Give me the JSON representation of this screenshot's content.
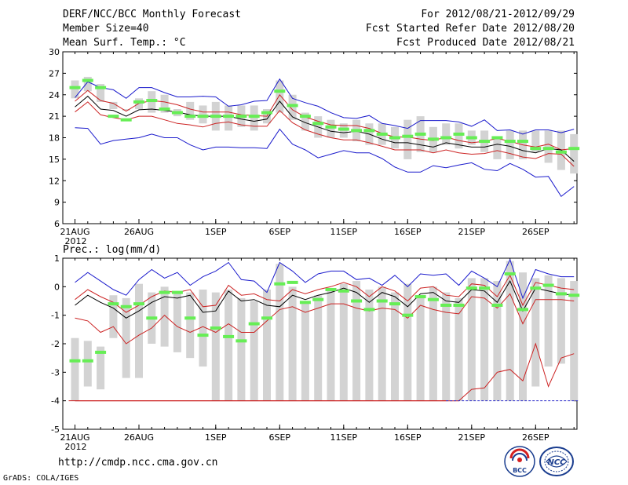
{
  "header": {
    "title_left": "DERF/NCC/BCC Monthly Forecast",
    "member_size": "Member Size=40",
    "variable": "Mean Surf. Temp.: °C",
    "forecast_period": "For 2012/08/21-2012/09/29",
    "start_date": "Fcst Started Refer Date 2012/08/20",
    "produced_date": "Fcst Produced Date 2012/08/21"
  },
  "footer": {
    "url": "http://cmdp.ncc.cma.gov.cn",
    "credit": "GrADS: COLA/IGES",
    "logo_left_text": "BCC",
    "logo_right_text": "NCC"
  },
  "colors": {
    "box": "#d3d3d3",
    "median": "#66ee55",
    "mean": "#000000",
    "inner": "#cc2222",
    "outer": "#1a1acc",
    "baseline": "#3333cc"
  },
  "chart_data": [
    {
      "type": "box",
      "title": "Mean Surf. Temp.: °C",
      "x_start": "2012-08-21",
      "n_days": 40,
      "xtick_labels": [
        "21AUG",
        "26AUG",
        "1SEP",
        "6SEP",
        "11SEP",
        "16SEP",
        "21SEP",
        "26SEP"
      ],
      "xtick_days": [
        0,
        5,
        11,
        16,
        21,
        26,
        31,
        36
      ],
      "year_label": "2012",
      "ylim": [
        6,
        30
      ],
      "yticks": [
        6,
        9,
        12,
        15,
        18,
        21,
        24,
        27,
        30
      ],
      "box_low": [
        23.5,
        24.5,
        23.0,
        22.0,
        21.8,
        22.0,
        21.5,
        21.5,
        21.0,
        20.5,
        20.0,
        19.0,
        19.0,
        19.5,
        19.0,
        20.0,
        21.5,
        20.5,
        19.0,
        18.0,
        18.0,
        18.0,
        17.5,
        17.0,
        17.0,
        16.5,
        15.0,
        16.0,
        16.0,
        17.0,
        16.5,
        17.0,
        16.0,
        15.0,
        15.0,
        15.0,
        16.0,
        14.5,
        13.5,
        13.0
      ],
      "box_high": [
        26.0,
        26.5,
        25.5,
        23.0,
        22.0,
        23.5,
        24.5,
        24.0,
        22.0,
        23.0,
        22.5,
        23.0,
        22.5,
        22.5,
        22.5,
        22.0,
        26.0,
        24.0,
        21.5,
        21.0,
        20.5,
        20.0,
        20.5,
        20.0,
        20.0,
        19.5,
        20.5,
        21.0,
        19.5,
        20.0,
        20.0,
        19.0,
        19.0,
        18.0,
        19.0,
        19.0,
        19.0,
        19.0,
        19.0,
        18.5
      ],
      "median": [
        25.0,
        26.0,
        25.0,
        21.0,
        20.5,
        23.0,
        23.2,
        22.0,
        21.5,
        21.0,
        21.0,
        21.0,
        21.0,
        21.0,
        21.0,
        21.5,
        24.5,
        22.5,
        21.0,
        20.0,
        19.5,
        19.2,
        19.0,
        19.0,
        18.5,
        18.0,
        18.2,
        18.5,
        17.8,
        18.0,
        18.5,
        18.0,
        17.5,
        18.0,
        17.5,
        17.5,
        16.5,
        16.5,
        16.0,
        16.5
      ],
      "mean": [
        22.3,
        23.8,
        22.0,
        21.8,
        21.0,
        21.9,
        22.0,
        21.8,
        21.6,
        21.2,
        21.0,
        21.0,
        21.0,
        20.6,
        20.3,
        20.6,
        23.1,
        20.9,
        20.1,
        19.5,
        18.9,
        18.7,
        18.9,
        18.5,
        17.8,
        17.3,
        17.3,
        17.0,
        16.7,
        17.3,
        17.0,
        16.7,
        16.7,
        17.1,
        16.8,
        16.2,
        15.9,
        16.5,
        16.3,
        14.7
      ],
      "inner_upper": [
        23.1,
        24.6,
        23.2,
        22.8,
        21.7,
        22.8,
        23.2,
        23.0,
        22.6,
        22.0,
        21.6,
        21.6,
        21.6,
        21.2,
        21.1,
        21.0,
        24.0,
        21.9,
        20.9,
        20.3,
        19.8,
        19.7,
        19.7,
        19.3,
        18.6,
        18.1,
        18.1,
        17.8,
        17.6,
        18.1,
        17.6,
        17.3,
        17.5,
        17.9,
        17.5,
        17.0,
        16.7,
        17.1,
        16.3,
        16.5
      ],
      "inner_lower": [
        21.6,
        23.0,
        21.2,
        20.8,
        20.5,
        21.0,
        21.0,
        20.5,
        20.0,
        19.8,
        19.5,
        20.0,
        20.2,
        19.8,
        19.6,
        19.6,
        21.8,
        20.1,
        19.1,
        18.5,
        18.0,
        17.7,
        17.7,
        17.3,
        16.8,
        16.3,
        16.3,
        16.3,
        15.9,
        16.3,
        15.9,
        15.7,
        15.8,
        16.2,
        15.8,
        15.3,
        15.1,
        15.8,
        15.7,
        14.0
      ],
      "outer_upper": [
        23.6,
        25.8,
        25.0,
        24.7,
        23.5,
        25.0,
        25.0,
        24.3,
        23.7,
        23.7,
        23.8,
        23.7,
        22.4,
        22.6,
        23.1,
        23.2,
        26.2,
        23.5,
        22.9,
        22.4,
        21.5,
        20.8,
        20.7,
        21.1,
        20.0,
        19.7,
        19.3,
        20.4,
        20.4,
        20.4,
        20.2,
        19.6,
        20.5,
        19.0,
        19.1,
        18.5,
        19.1,
        19.1,
        18.7,
        19.2
      ],
      "outer_lower": [
        19.4,
        19.3,
        17.1,
        17.6,
        17.8,
        18.0,
        18.5,
        18.0,
        18.0,
        17.0,
        16.3,
        16.7,
        16.7,
        16.6,
        16.6,
        16.5,
        19.2,
        17.1,
        16.3,
        15.2,
        15.7,
        16.2,
        15.9,
        15.9,
        15.1,
        13.9,
        13.2,
        13.2,
        14.1,
        13.8,
        14.2,
        14.5,
        13.6,
        13.4,
        14.4,
        13.6,
        12.5,
        12.6,
        9.8,
        11.2
      ]
    },
    {
      "type": "box",
      "title": "Prec.: log(mm/d)",
      "x_start": "2012-08-21",
      "n_days": 40,
      "xtick_labels": [
        "21AUG",
        "26AUG",
        "1SEP",
        "6SEP",
        "11SEP",
        "16SEP",
        "21SEP",
        "26SEP"
      ],
      "xtick_days": [
        0,
        5,
        11,
        16,
        21,
        26,
        31,
        36
      ],
      "year_label": "2012",
      "ylim": [
        -5,
        1
      ],
      "yticks": [
        -5,
        -4,
        -3,
        -2,
        -1,
        0,
        1
      ],
      "box_low": [
        -4.0,
        -3.5,
        -3.6,
        -1.8,
        -3.2,
        -3.2,
        -2.0,
        -2.1,
        -2.3,
        -2.5,
        -2.8,
        -4.0,
        -4.0,
        -4.0,
        -4.0,
        -4.0,
        -4.0,
        -4.0,
        -4.0,
        -4.0,
        -4.0,
        -4.0,
        -4.0,
        -4.0,
        -4.0,
        -4.0,
        -4.0,
        -4.0,
        -4.0,
        -4.0,
        -4.0,
        -4.0,
        -4.0,
        -4.0,
        -4.0,
        -4.0,
        -3.5,
        -2.8,
        -2.7,
        -4.0
      ],
      "box_high": [
        -1.8,
        -1.9,
        -2.1,
        -0.3,
        -0.4,
        0.1,
        -0.2,
        0.0,
        -0.2,
        -0.2,
        -0.1,
        -0.2,
        -0.1,
        -0.4,
        -0.5,
        -0.1,
        0.8,
        0.0,
        -0.5,
        -0.3,
        -0.1,
        0.1,
        0.2,
        -0.1,
        0.0,
        -0.2,
        0.1,
        -0.3,
        0.0,
        -0.2,
        -0.4,
        0.3,
        0.3,
        0.2,
        0.9,
        0.5,
        0.3,
        0.4,
        0.3,
        0.2
      ],
      "median": [
        -2.6,
        -2.6,
        -2.3,
        -0.6,
        -0.7,
        -0.6,
        -1.1,
        -0.2,
        -0.2,
        -1.1,
        -1.7,
        -1.45,
        -1.75,
        -1.9,
        -1.3,
        -1.1,
        0.1,
        0.15,
        -0.55,
        -0.45,
        -0.1,
        -0.15,
        -0.5,
        -0.8,
        -0.5,
        -0.6,
        -1.0,
        -0.35,
        -0.45,
        -0.65,
        -0.65,
        -0.05,
        -0.05,
        -0.65,
        0.45,
        -0.8,
        -0.05,
        0.05,
        -0.25,
        -0.3
      ],
      "mean": [
        -0.65,
        -0.3,
        -0.55,
        -0.75,
        -1.1,
        -0.85,
        -0.55,
        -0.35,
        -0.4,
        -0.3,
        -0.9,
        -0.85,
        -0.15,
        -0.5,
        -0.45,
        -0.65,
        -0.7,
        -0.3,
        -0.45,
        -0.3,
        -0.2,
        -0.05,
        -0.2,
        -0.55,
        -0.2,
        -0.35,
        -0.7,
        -0.25,
        -0.2,
        -0.5,
        -0.55,
        -0.1,
        -0.15,
        -0.55,
        0.2,
        -0.85,
        -0.05,
        -0.15,
        -0.25,
        -0.3
      ],
      "inner_upper": [
        -0.45,
        -0.1,
        -0.35,
        -0.55,
        -0.9,
        -0.65,
        -0.35,
        -0.15,
        -0.2,
        -0.1,
        -0.7,
        -0.65,
        0.05,
        -0.3,
        -0.25,
        -0.45,
        -0.5,
        -0.1,
        -0.25,
        -0.1,
        0.0,
        0.15,
        0.0,
        -0.35,
        0.0,
        -0.15,
        -0.5,
        -0.05,
        0.0,
        -0.3,
        -0.35,
        0.1,
        0.05,
        -0.35,
        0.4,
        -0.65,
        0.15,
        0.05,
        -0.05,
        -0.1
      ],
      "inner_lower": [
        -1.1,
        -1.2,
        -1.6,
        -1.4,
        -2.0,
        -1.7,
        -1.45,
        -1.0,
        -1.4,
        -1.6,
        -1.4,
        -1.6,
        -1.3,
        -1.6,
        -1.6,
        -1.2,
        -0.8,
        -0.7,
        -0.9,
        -0.75,
        -0.6,
        -0.6,
        -0.75,
        -0.85,
        -0.75,
        -0.8,
        -1.1,
        -0.65,
        -0.8,
        -0.9,
        -0.95,
        -0.35,
        -0.4,
        -0.75,
        -0.25,
        -1.3,
        -0.45,
        -0.45,
        -0.45,
        -0.5
      ],
      "outer_upper": [
        0.15,
        0.5,
        0.2,
        -0.1,
        -0.3,
        0.25,
        0.6,
        0.3,
        0.5,
        0.05,
        0.35,
        0.55,
        0.85,
        0.25,
        0.2,
        -0.2,
        0.85,
        0.55,
        0.15,
        0.45,
        0.55,
        0.55,
        0.25,
        0.3,
        0.05,
        0.4,
        0.0,
        0.45,
        0.4,
        0.45,
        0.05,
        0.55,
        0.3,
        0.0,
        0.95,
        -0.4,
        0.6,
        0.45,
        0.35,
        0.35
      ],
      "inner_lower2": [
        -4.0,
        -4.0,
        -4.0,
        -4.0,
        -4.0,
        -4.0,
        -4.0,
        -4.0,
        -4.0,
        -4.0,
        -4.0,
        -4.0,
        -4.0,
        -4.0,
        -4.0,
        -4.0,
        -4.0,
        -4.0,
        -4.0,
        -4.0,
        -4.0,
        -4.0,
        -4.0,
        -4.0,
        -4.0,
        -4.0,
        -4.0,
        -4.0,
        -4.0,
        -4.0,
        -4.0,
        -3.6,
        -3.55,
        -3.0,
        -2.9,
        -3.3,
        -2.0,
        -3.5,
        -2.5,
        -2.35
      ],
      "outer_lower": [
        -4.0,
        -4.0,
        -4.0,
        -4.0,
        -4.0,
        -4.0,
        -4.0,
        -4.0,
        -4.0,
        -4.0,
        -4.0,
        -4.0,
        -4.0,
        -4.0,
        -4.0,
        -4.0,
        -4.0,
        -4.0,
        -4.0,
        -4.0,
        -4.0,
        -4.0,
        -4.0,
        -4.0,
        -4.0,
        -4.0,
        -4.0,
        -4.0,
        -4.0,
        -4.0,
        -4.0,
        -4.0,
        -4.0,
        -4.0,
        -4.0,
        -4.0,
        -4.0,
        -4.0,
        -4.0,
        -4.0
      ]
    }
  ]
}
